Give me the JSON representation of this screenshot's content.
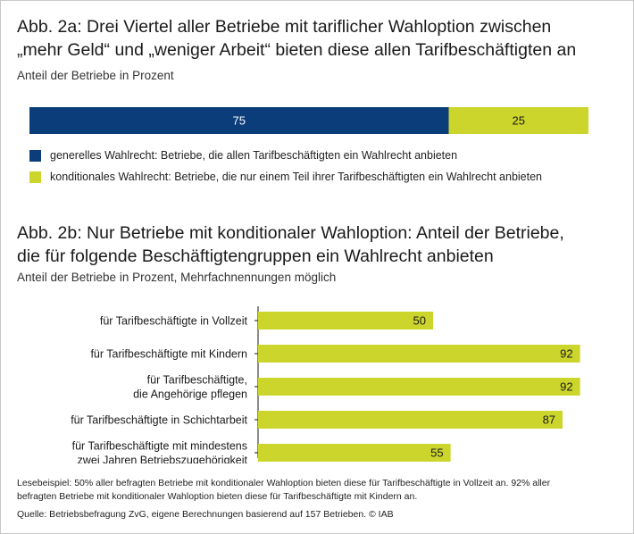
{
  "colors": {
    "dark_blue": "#0b3d7a",
    "lime": "#ccd52c",
    "text": "#1a1a1a"
  },
  "fig_a": {
    "title_line1": "Abb. 2a: Drei Viertel aller Betriebe mit tariflicher Wahloption zwischen",
    "title_line2": "„mehr Geld“ und „weniger Arbeit“ bieten diese allen Tarifbeschäftigten an",
    "subtitle": "Anteil der Betriebe in Prozent",
    "legend": [
      {
        "label": "generelles Wahlrecht: Betriebe, die allen Tarifbeschäftigten ein Wahlrecht anbieten",
        "color": "#0b3d7a"
      },
      {
        "label": "konditionales Wahlrecht: Betriebe, die nur einem Teil ihrer Tarifbeschäftigten ein Wahlrecht anbieten",
        "color": "#ccd52c"
      }
    ]
  },
  "fig_b": {
    "title_line1": "Abb. 2b: Nur Betriebe mit konditionaler Wahloption: Anteil der Betriebe,",
    "title_line2": "die für folgende Beschäftigtengruppen ein Wahlrecht anbieten",
    "subtitle": "Anteil der Betriebe in Prozent, Mehrfachnennungen möglich"
  },
  "footer": {
    "note_line1": "Lesebeispiel: 50% aller befragten Betriebe mit konditionaler Wahloption bieten diese für Tarifbeschäftigte in Vollzeit an. 92% aller",
    "note_line2": "befragten Betriebe mit konditionaler Wahloption bieten diese für Tarifbeschäftigte mit Kindern an.",
    "source": "Quelle: Betriebsbefragung ZvG, eigene Berechnungen basierend auf 157 Betrieben.  © IAB"
  },
  "chart_data": [
    {
      "type": "bar",
      "orientation": "horizontal-stacked",
      "title": "Abb. 2a: Drei Viertel aller Betriebe mit tariflicher Wahloption zwischen „mehr Geld“ und „weniger Arbeit“ bieten diese allen Tarifbeschäftigten an",
      "ylabel": "Anteil der Betriebe in Prozent",
      "xlim": [
        0,
        100
      ],
      "series": [
        {
          "name": "generelles Wahlrecht",
          "values": [
            75
          ],
          "color": "#0b3d7a"
        },
        {
          "name": "konditionales Wahlrecht",
          "values": [
            25
          ],
          "color": "#ccd52c"
        }
      ]
    },
    {
      "type": "bar",
      "orientation": "horizontal",
      "title": "Abb. 2b: Nur Betriebe mit konditionaler Wahloption: Anteil der Betriebe, die für folgende Beschäftigtengruppen ein Wahlrecht anbieten",
      "xlabel": "Anteil der Betriebe in Prozent, Mehrfachnennungen möglich",
      "xlim": [
        0,
        100
      ],
      "categories": [
        [
          "für Tarifbeschäftigte in Vollzeit"
        ],
        [
          "für Tarifbeschäftigte mit Kindern"
        ],
        [
          "für Tarifbeschäftigte,",
          "die Angehörige pflegen"
        ],
        [
          "für Tarifbeschäftigte in Schichtarbeit"
        ],
        [
          "für Tarifbeschäftigte mit mindestens",
          "zwei Jahren Betriebszugehörigkeit"
        ]
      ],
      "values": [
        50,
        92,
        92,
        87,
        55
      ],
      "color": "#ccd52c"
    }
  ]
}
